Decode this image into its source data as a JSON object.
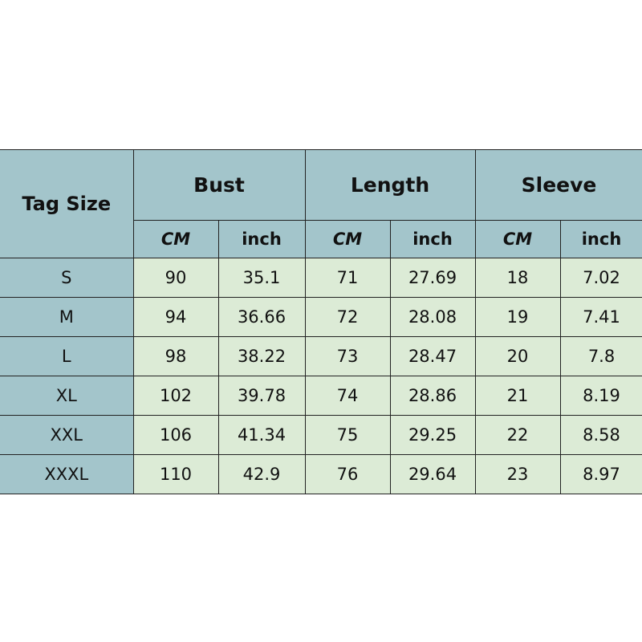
{
  "header": {
    "tag_size": "Tag Size",
    "groups": [
      "Bust",
      "Length",
      "Sleeve"
    ],
    "units": [
      "CM",
      "inch"
    ]
  },
  "rows": [
    {
      "size": "S",
      "values": [
        "90",
        "35.1",
        "71",
        "27.69",
        "18",
        "7.02"
      ]
    },
    {
      "size": "M",
      "values": [
        "94",
        "36.66",
        "72",
        "28.08",
        "19",
        "7.41"
      ]
    },
    {
      "size": "L",
      "values": [
        "98",
        "38.22",
        "73",
        "28.47",
        "20",
        "7.8"
      ]
    },
    {
      "size": "XL",
      "values": [
        "102",
        "39.78",
        "74",
        "28.86",
        "21",
        "8.19"
      ]
    },
    {
      "size": "XXL",
      "values": [
        "106",
        "41.34",
        "75",
        "29.25",
        "22",
        "8.58"
      ]
    },
    {
      "size": "XXXL",
      "values": [
        "110",
        "42.9",
        "76",
        "29.64",
        "23",
        "8.97"
      ]
    }
  ],
  "colors": {
    "header": "#a3c5cb",
    "cells": "#dcebd6"
  }
}
